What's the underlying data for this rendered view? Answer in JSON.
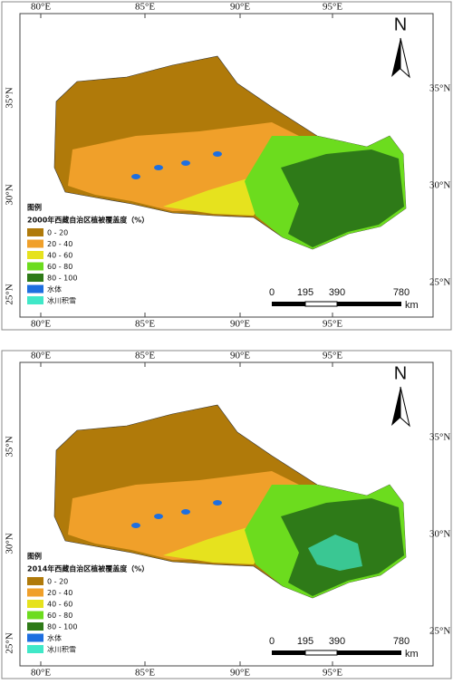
{
  "panels": [
    {
      "longitude_labels_top": [
        "80°E",
        "85°E",
        "90°E",
        "95°E"
      ],
      "longitude_labels_bottom": [
        "80°E",
        "85°E",
        "90°E",
        "95°E"
      ],
      "latitude_labels_left": [
        "35°N",
        "30°N",
        "25°N"
      ],
      "latitude_labels_right": [
        "35°N",
        "30°N",
        "25°N"
      ],
      "north": "N",
      "legend_heading": "图例",
      "legend_title": "2000年西藏自治区植被覆盖度（%）",
      "legend": [
        {
          "label": "0 - 20",
          "color": "#b07a0a"
        },
        {
          "label": "20 - 40",
          "color": "#f0a02a"
        },
        {
          "label": "40 - 60",
          "color": "#e6e21e"
        },
        {
          "label": "60 - 80",
          "color": "#6cdc1e"
        },
        {
          "label": "80 - 100",
          "color": "#2e7a18"
        },
        {
          "label": "水体",
          "color": "#1e6fe0"
        },
        {
          "label": "冰川积雪",
          "color": "#40e8c8"
        }
      ],
      "scale_labels": [
        "0",
        "195",
        "390",
        "780"
      ],
      "scale_unit": "km"
    },
    {
      "longitude_labels_top": [
        "80°E",
        "85°E",
        "90°E",
        "95°E"
      ],
      "longitude_labels_bottom": [
        "80°E",
        "85°E",
        "90°E",
        "95°E"
      ],
      "latitude_labels_left": [
        "35°N",
        "30°N",
        "25°N"
      ],
      "latitude_labels_right": [
        "35°N",
        "30°N",
        "25°N"
      ],
      "north": "N",
      "legend_heading": "图例",
      "legend_title": "2014年西藏自治区植被覆盖度（%）",
      "legend": [
        {
          "label": "0 - 20",
          "color": "#b07a0a"
        },
        {
          "label": "20 - 40",
          "color": "#f0a02a"
        },
        {
          "label": "40 - 60",
          "color": "#e6e21e"
        },
        {
          "label": "60 - 80",
          "color": "#6cdc1e"
        },
        {
          "label": "80 - 100",
          "color": "#2e7a18"
        },
        {
          "label": "水体",
          "color": "#1e6fe0"
        },
        {
          "label": "冰川积雪",
          "color": "#40e8c8"
        }
      ],
      "scale_labels": [
        "0",
        "195",
        "390",
        "780"
      ],
      "scale_unit": "km"
    }
  ]
}
